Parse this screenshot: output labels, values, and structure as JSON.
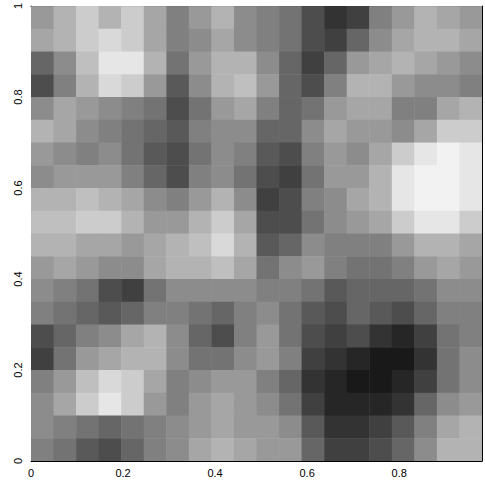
{
  "chart_data": {
    "type": "heatmap",
    "xlim": [
      0,
      0.98
    ],
    "ylim": [
      0,
      1
    ],
    "xticks": [
      0,
      0.2,
      0.4,
      0.6,
      0.8
    ],
    "yticks": [
      0,
      0.2,
      0.4,
      0.6,
      0.8,
      1
    ],
    "zlim": [
      0,
      1
    ],
    "cells": [
      [
        0.4,
        0.3,
        0.2,
        0.3,
        0.2,
        0.35,
        0.5,
        0.4,
        0.3,
        0.45,
        0.5,
        0.55,
        0.7,
        0.8,
        0.75,
        0.5,
        0.4,
        0.3,
        0.35,
        0.4
      ],
      [
        0.35,
        0.3,
        0.2,
        0.15,
        0.2,
        0.35,
        0.5,
        0.45,
        0.35,
        0.45,
        0.5,
        0.55,
        0.7,
        0.75,
        0.6,
        0.45,
        0.35,
        0.3,
        0.3,
        0.35
      ],
      [
        0.6,
        0.45,
        0.25,
        0.1,
        0.1,
        0.3,
        0.55,
        0.4,
        0.3,
        0.3,
        0.45,
        0.6,
        0.75,
        0.6,
        0.4,
        0.35,
        0.3,
        0.35,
        0.4,
        0.45
      ],
      [
        0.7,
        0.5,
        0.3,
        0.15,
        0.2,
        0.4,
        0.65,
        0.45,
        0.3,
        0.25,
        0.4,
        0.6,
        0.7,
        0.5,
        0.3,
        0.3,
        0.4,
        0.45,
        0.45,
        0.5
      ],
      [
        0.45,
        0.35,
        0.4,
        0.45,
        0.5,
        0.55,
        0.7,
        0.55,
        0.4,
        0.35,
        0.5,
        0.6,
        0.55,
        0.4,
        0.35,
        0.35,
        0.5,
        0.5,
        0.35,
        0.3
      ],
      [
        0.3,
        0.35,
        0.45,
        0.5,
        0.55,
        0.6,
        0.65,
        0.5,
        0.45,
        0.45,
        0.6,
        0.6,
        0.45,
        0.35,
        0.4,
        0.4,
        0.45,
        0.35,
        0.2,
        0.2
      ],
      [
        0.4,
        0.45,
        0.5,
        0.45,
        0.55,
        0.65,
        0.7,
        0.55,
        0.45,
        0.5,
        0.65,
        0.7,
        0.5,
        0.4,
        0.45,
        0.35,
        0.2,
        0.1,
        0.05,
        0.1
      ],
      [
        0.45,
        0.4,
        0.4,
        0.4,
        0.5,
        0.6,
        0.7,
        0.5,
        0.45,
        0.55,
        0.7,
        0.75,
        0.55,
        0.4,
        0.4,
        0.3,
        0.1,
        0.05,
        0.05,
        0.1
      ],
      [
        0.3,
        0.3,
        0.25,
        0.3,
        0.35,
        0.45,
        0.5,
        0.4,
        0.3,
        0.45,
        0.75,
        0.7,
        0.5,
        0.45,
        0.35,
        0.3,
        0.1,
        0.05,
        0.05,
        0.1
      ],
      [
        0.25,
        0.25,
        0.2,
        0.2,
        0.3,
        0.4,
        0.4,
        0.3,
        0.2,
        0.35,
        0.7,
        0.7,
        0.55,
        0.45,
        0.4,
        0.35,
        0.2,
        0.1,
        0.1,
        0.2
      ],
      [
        0.3,
        0.3,
        0.35,
        0.35,
        0.4,
        0.35,
        0.3,
        0.25,
        0.15,
        0.3,
        0.65,
        0.6,
        0.45,
        0.5,
        0.5,
        0.5,
        0.4,
        0.3,
        0.3,
        0.35
      ],
      [
        0.4,
        0.35,
        0.4,
        0.45,
        0.45,
        0.35,
        0.3,
        0.3,
        0.25,
        0.35,
        0.55,
        0.45,
        0.4,
        0.5,
        0.55,
        0.55,
        0.5,
        0.4,
        0.35,
        0.4
      ],
      [
        0.45,
        0.5,
        0.55,
        0.7,
        0.75,
        0.55,
        0.45,
        0.45,
        0.45,
        0.45,
        0.5,
        0.5,
        0.55,
        0.65,
        0.6,
        0.6,
        0.6,
        0.55,
        0.45,
        0.45
      ],
      [
        0.5,
        0.55,
        0.6,
        0.65,
        0.6,
        0.5,
        0.5,
        0.55,
        0.6,
        0.5,
        0.45,
        0.55,
        0.65,
        0.7,
        0.6,
        0.65,
        0.7,
        0.6,
        0.5,
        0.5
      ],
      [
        0.7,
        0.6,
        0.5,
        0.45,
        0.35,
        0.3,
        0.45,
        0.6,
        0.7,
        0.5,
        0.4,
        0.55,
        0.7,
        0.75,
        0.7,
        0.8,
        0.85,
        0.75,
        0.55,
        0.5
      ],
      [
        0.75,
        0.55,
        0.4,
        0.35,
        0.3,
        0.3,
        0.45,
        0.55,
        0.55,
        0.45,
        0.4,
        0.5,
        0.75,
        0.8,
        0.85,
        0.9,
        0.9,
        0.8,
        0.55,
        0.45
      ],
      [
        0.5,
        0.4,
        0.25,
        0.15,
        0.2,
        0.35,
        0.5,
        0.45,
        0.4,
        0.4,
        0.5,
        0.6,
        0.8,
        0.85,
        0.9,
        0.9,
        0.85,
        0.75,
        0.55,
        0.45
      ],
      [
        0.45,
        0.35,
        0.2,
        0.1,
        0.2,
        0.4,
        0.5,
        0.4,
        0.35,
        0.4,
        0.45,
        0.55,
        0.75,
        0.85,
        0.85,
        0.85,
        0.8,
        0.6,
        0.45,
        0.4
      ],
      [
        0.45,
        0.5,
        0.55,
        0.6,
        0.55,
        0.5,
        0.45,
        0.4,
        0.35,
        0.4,
        0.4,
        0.45,
        0.65,
        0.8,
        0.8,
        0.75,
        0.65,
        0.5,
        0.35,
        0.3
      ],
      [
        0.5,
        0.55,
        0.65,
        0.7,
        0.6,
        0.5,
        0.45,
        0.35,
        0.3,
        0.35,
        0.4,
        0.4,
        0.6,
        0.75,
        0.75,
        0.7,
        0.6,
        0.45,
        0.3,
        0.3
      ]
    ]
  }
}
